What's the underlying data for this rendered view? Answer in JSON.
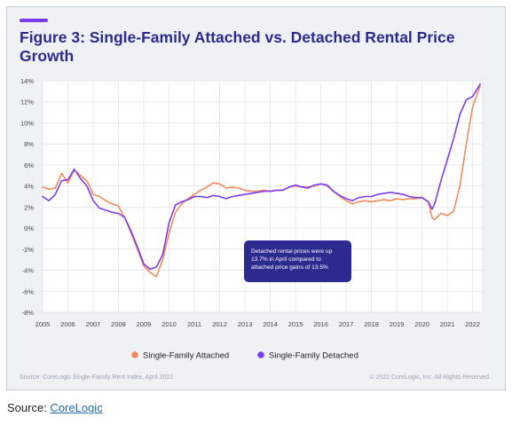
{
  "title": "Figure 3: Single-Family Attached vs. Detached Rental Price Growth",
  "footer_left": "Source: CoreLogic Single-Family Rent Index, April 2022",
  "footer_right": "© 2022 CoreLogic, Inc. All Rights Reserved.",
  "page_source": {
    "label": "Source:",
    "link": "CoreLogic"
  },
  "colors": {
    "title": "#2d2a8f",
    "accent": "#7d3cf2",
    "attached": "#f58a5b",
    "detached": "#7d3cf2",
    "callout_bg": "#2d2a8f",
    "callout_text": "#ffffff"
  },
  "chart_data": {
    "type": "line",
    "title": "Figure 3: Single-Family Attached vs. Detached Rental Price Growth",
    "xlabel": "",
    "ylabel": "",
    "xlim": [
      2005,
      2022.4
    ],
    "ylim": [
      -8,
      14
    ],
    "xticks": [
      "2005",
      "2006",
      "2007",
      "2008",
      "2009",
      "2010",
      "2011",
      "2012",
      "2013",
      "2014",
      "2015",
      "2016",
      "2017",
      "2018",
      "2019",
      "2020",
      "2021",
      "2022"
    ],
    "yticks": [
      "-8%",
      "-6%",
      "-4%",
      "-2%",
      "0%",
      "2%",
      "4%",
      "6%",
      "8%",
      "10%",
      "12%",
      "14%"
    ],
    "grid": true,
    "legend": "bottom-center",
    "annotation": "Detached rental prices were up 13.7% in April compared to attached price gains of 13.5%",
    "series": [
      {
        "name": "Single-Family Attached",
        "x": [
          2005.0,
          2005.25,
          2005.5,
          2005.75,
          2006.0,
          2006.25,
          2006.5,
          2006.75,
          2007.0,
          2007.25,
          2007.5,
          2007.75,
          2008.0,
          2008.25,
          2008.5,
          2008.75,
          2009.0,
          2009.25,
          2009.5,
          2009.75,
          2010.0,
          2010.25,
          2010.5,
          2010.75,
          2011.0,
          2011.25,
          2011.5,
          2011.75,
          2012.0,
          2012.25,
          2012.5,
          2012.75,
          2013.0,
          2013.25,
          2013.5,
          2013.75,
          2014.0,
          2014.25,
          2014.5,
          2014.75,
          2015.0,
          2015.25,
          2015.5,
          2015.75,
          2016.0,
          2016.25,
          2016.5,
          2016.75,
          2017.0,
          2017.25,
          2017.5,
          2017.75,
          2018.0,
          2018.25,
          2018.5,
          2018.75,
          2019.0,
          2019.25,
          2019.5,
          2019.75,
          2020.0,
          2020.25,
          2020.4,
          2020.5,
          2020.75,
          2021.0,
          2021.25,
          2021.5,
          2021.75,
          2022.0,
          2022.3
        ],
        "values": [
          3.9,
          3.7,
          3.8,
          5.2,
          4.3,
          5.5,
          5.0,
          4.5,
          3.2,
          3.0,
          2.6,
          2.3,
          2.1,
          1.0,
          -0.5,
          -2.0,
          -3.6,
          -4.2,
          -4.6,
          -3.0,
          -0.5,
          1.5,
          2.3,
          2.8,
          3.2,
          3.6,
          3.9,
          4.3,
          4.2,
          3.8,
          3.9,
          3.8,
          3.6,
          3.5,
          3.5,
          3.6,
          3.5,
          3.6,
          3.6,
          3.9,
          4.0,
          3.9,
          3.9,
          4.0,
          4.2,
          4.0,
          3.5,
          3.0,
          2.6,
          2.3,
          2.5,
          2.6,
          2.5,
          2.6,
          2.7,
          2.6,
          2.8,
          2.7,
          2.8,
          2.8,
          2.9,
          2.5,
          1.0,
          0.8,
          1.4,
          1.2,
          1.6,
          4.0,
          8.0,
          11.5,
          13.5
        ]
      },
      {
        "name": "Single-Family Detached",
        "x": [
          2005.0,
          2005.25,
          2005.5,
          2005.75,
          2006.0,
          2006.25,
          2006.5,
          2006.75,
          2007.0,
          2007.25,
          2007.5,
          2007.75,
          2008.0,
          2008.25,
          2008.5,
          2008.75,
          2009.0,
          2009.25,
          2009.5,
          2009.75,
          2010.0,
          2010.25,
          2010.5,
          2010.75,
          2011.0,
          2011.25,
          2011.5,
          2011.75,
          2012.0,
          2012.25,
          2012.5,
          2012.75,
          2013.0,
          2013.25,
          2013.5,
          2013.75,
          2014.0,
          2014.25,
          2014.5,
          2014.75,
          2015.0,
          2015.25,
          2015.5,
          2015.75,
          2016.0,
          2016.25,
          2016.5,
          2016.75,
          2017.0,
          2017.25,
          2017.5,
          2017.75,
          2018.0,
          2018.25,
          2018.5,
          2018.75,
          2019.0,
          2019.25,
          2019.5,
          2019.75,
          2020.0,
          2020.25,
          2020.4,
          2020.5,
          2020.75,
          2021.0,
          2021.25,
          2021.5,
          2021.75,
          2022.0,
          2022.3
        ],
        "values": [
          3.0,
          2.6,
          3.2,
          4.5,
          4.6,
          5.6,
          4.7,
          4.0,
          2.6,
          1.9,
          1.7,
          1.5,
          1.4,
          1.0,
          -0.3,
          -1.8,
          -3.4,
          -3.9,
          -3.7,
          -2.5,
          0.5,
          2.2,
          2.5,
          2.7,
          3.0,
          3.0,
          2.9,
          3.1,
          3.0,
          2.8,
          3.0,
          3.1,
          3.2,
          3.3,
          3.4,
          3.5,
          3.5,
          3.6,
          3.6,
          3.9,
          4.1,
          3.9,
          3.8,
          4.1,
          4.2,
          4.1,
          3.5,
          3.1,
          2.8,
          2.6,
          2.9,
          3.0,
          3.0,
          3.2,
          3.3,
          3.4,
          3.3,
          3.2,
          3.0,
          2.9,
          2.9,
          2.5,
          1.8,
          2.3,
          4.5,
          6.5,
          8.5,
          10.8,
          12.2,
          12.5,
          13.7
        ]
      }
    ]
  }
}
